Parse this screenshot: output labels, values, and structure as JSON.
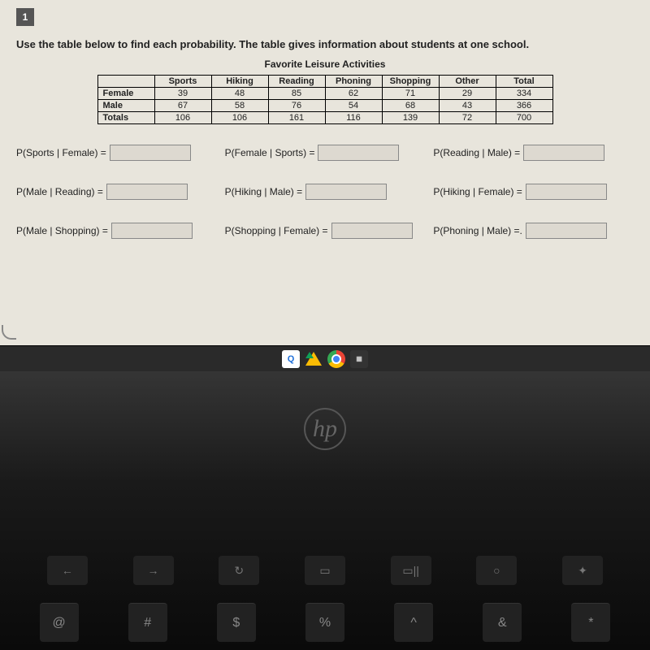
{
  "question_number": "1",
  "instruction": "Use the table below to find each probability. The table gives information about students at one school.",
  "table_title": "Favorite Leisure Activities",
  "table": {
    "columns": [
      "",
      "Sports",
      "Hiking",
      "Reading",
      "Phoning",
      "Shopping",
      "Other",
      "Total"
    ],
    "rows": [
      [
        "Female",
        "39",
        "48",
        "85",
        "62",
        "71",
        "29",
        "334"
      ],
      [
        "Male",
        "67",
        "58",
        "76",
        "54",
        "68",
        "43",
        "366"
      ],
      [
        "Totals",
        "106",
        "106",
        "161",
        "116",
        "139",
        "72",
        "700"
      ]
    ]
  },
  "answers": [
    {
      "label": "P(Sports | Female) =",
      "value": ""
    },
    {
      "label": "P(Female | Sports) =",
      "value": ""
    },
    {
      "label": "P(Reading | Male) =",
      "value": ""
    },
    {
      "label": "P(Male | Reading) =",
      "value": ""
    },
    {
      "label": "P(Hiking | Male) =",
      "value": ""
    },
    {
      "label": "P(Hiking | Female) =",
      "value": ""
    },
    {
      "label": "P(Male | Shopping) =",
      "value": ""
    },
    {
      "label": "P(Shopping | Female) =",
      "value": ""
    },
    {
      "label": "P(Phoning | Male) =.",
      "value": ""
    }
  ],
  "taskbar_q": "Q",
  "hp": "hp",
  "fn_keys": [
    "←",
    "→",
    "↻",
    "▭",
    "▭||",
    "○",
    "✦"
  ],
  "num_keys": [
    "@",
    "#",
    "$",
    "%",
    "^",
    "&",
    "*"
  ]
}
